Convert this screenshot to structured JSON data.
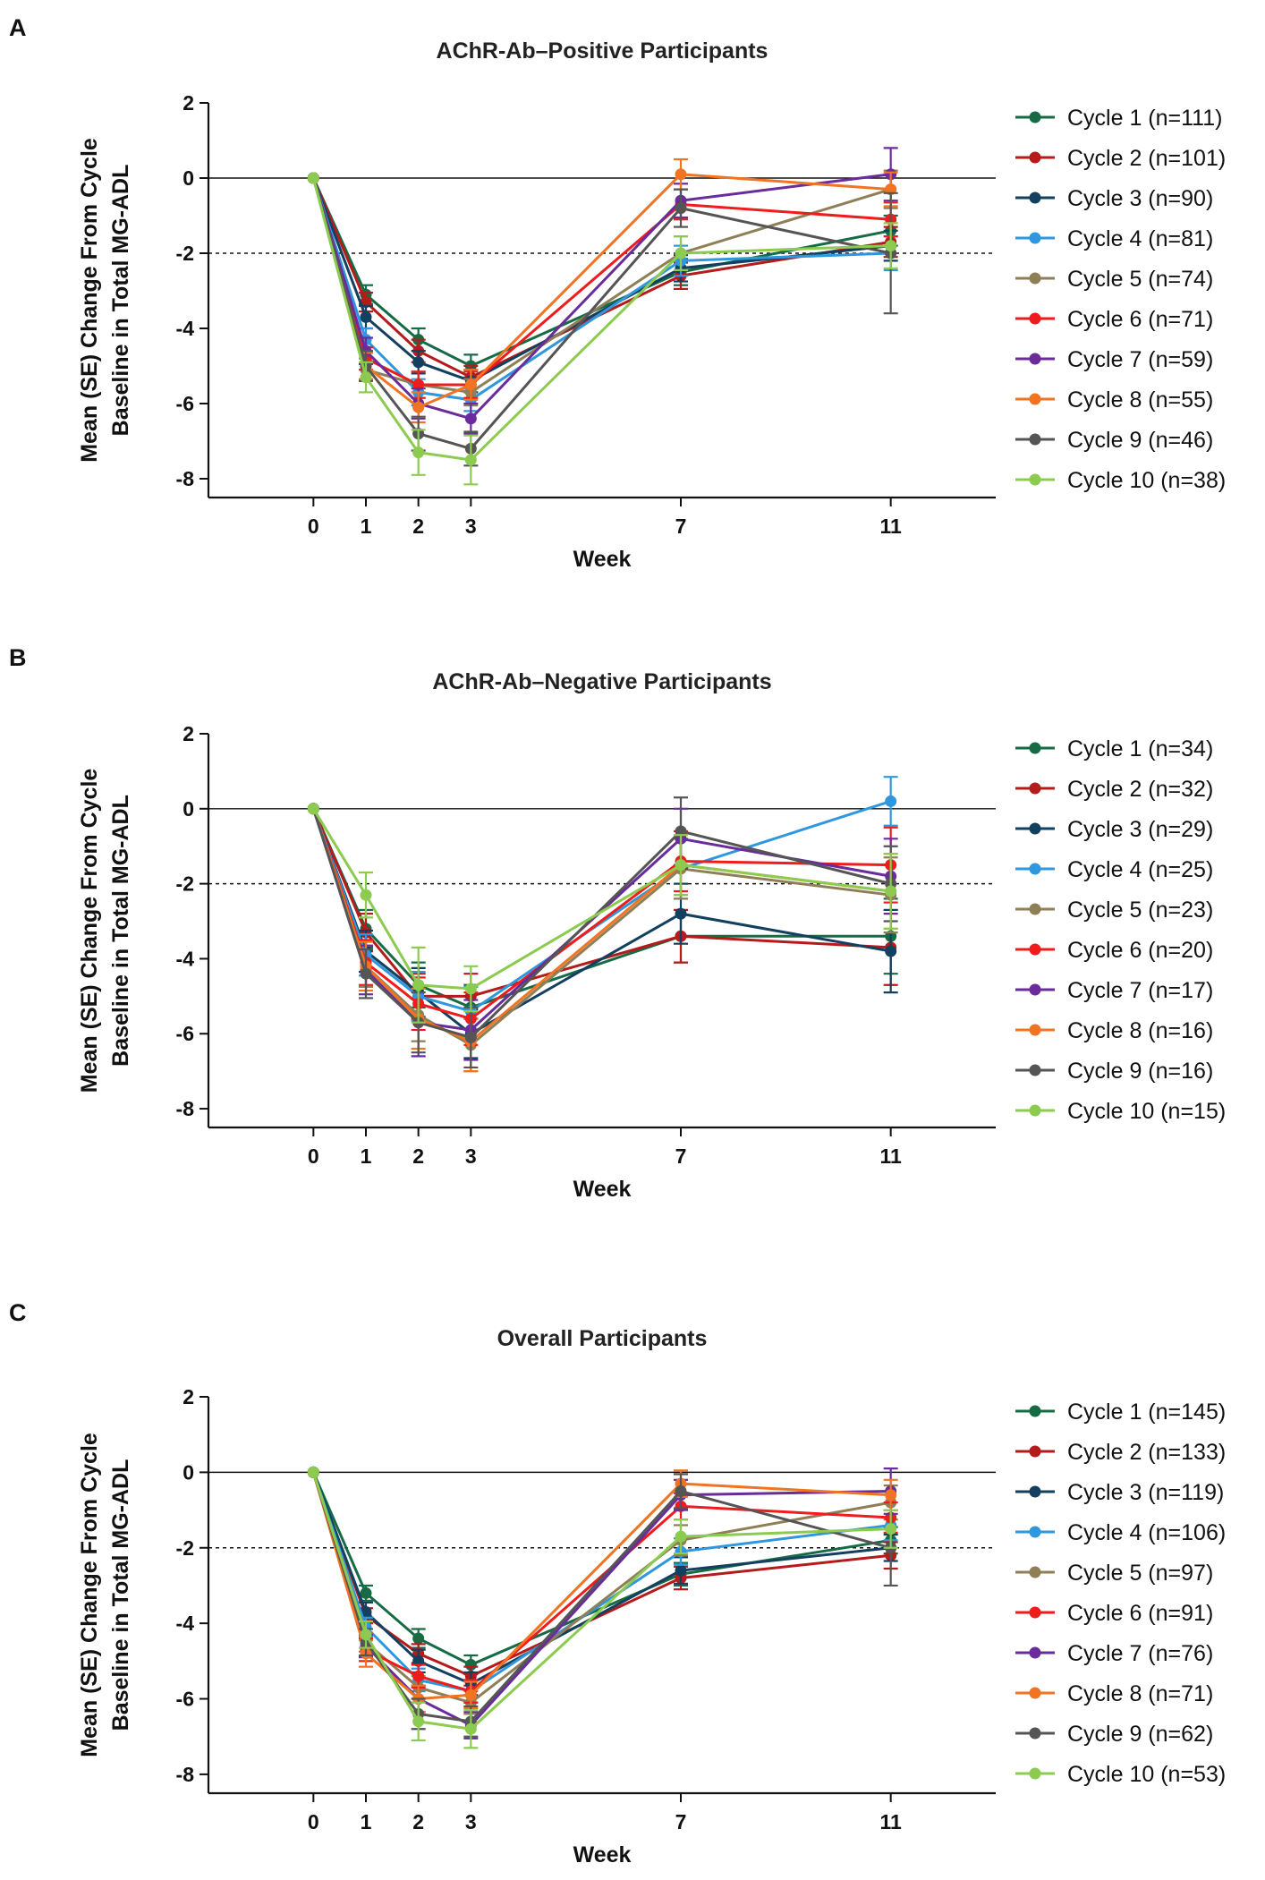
{
  "colors": {
    "Cycle 1": "#166B45",
    "Cycle 2": "#B51B1B",
    "Cycle 3": "#12405E",
    "Cycle 4": "#2F97DE",
    "Cycle 5": "#8E7F57",
    "Cycle 6": "#EE1C1C",
    "Cycle 7": "#6A2C9A",
    "Cycle 8": "#F07421",
    "Cycle 9": "#555555",
    "Cycle 10": "#8CCB4F"
  },
  "chart_data": [
    {
      "panel": "A",
      "type": "line",
      "title": "AChR-Ab–Positive Participants",
      "xlabel": "Week",
      "ylabel": [
        "Mean (SE) Change From Cycle",
        "Baseline in Total MG-ADL"
      ],
      "x": [
        0,
        1,
        2,
        3,
        7,
        11
      ],
      "xticks": [
        "0",
        "1",
        "2",
        "3",
        "7",
        "11"
      ],
      "yticks": [
        "2",
        "0",
        "-2",
        "-4",
        "-6",
        "-8"
      ],
      "xlim": [
        -2,
        13
      ],
      "ylim": [
        -8.5,
        2
      ],
      "reference_lines": [
        0,
        -2
      ],
      "legend_position": "right",
      "series": [
        {
          "name": "Cycle 1",
          "legend": "Cycle 1 (n=111)",
          "values": [
            0,
            -3.1,
            -4.3,
            -5.0,
            -2.5,
            -1.4
          ],
          "se": [
            0,
            0.25,
            0.3,
            0.3,
            0.35,
            0.4
          ]
        },
        {
          "name": "Cycle 2",
          "legend": "Cycle 2 (n=101)",
          "values": [
            0,
            -3.3,
            -4.6,
            -5.3,
            -2.6,
            -1.7
          ],
          "se": [
            0,
            0.25,
            0.3,
            0.3,
            0.35,
            0.4
          ]
        },
        {
          "name": "Cycle 3",
          "legend": "Cycle 3 (n=90)",
          "values": [
            0,
            -3.7,
            -4.9,
            -5.4,
            -2.4,
            -1.8
          ],
          "se": [
            0,
            0.3,
            0.3,
            0.3,
            0.35,
            0.4
          ]
        },
        {
          "name": "Cycle 4",
          "legend": "Cycle 4 (n=81)",
          "values": [
            0,
            -4.3,
            -5.7,
            -5.9,
            -2.2,
            -2.0
          ],
          "se": [
            0,
            0.3,
            0.35,
            0.3,
            0.4,
            0.45
          ]
        },
        {
          "name": "Cycle 5",
          "legend": "Cycle 5 (n=74)",
          "values": [
            0,
            -5.1,
            -5.5,
            -5.7,
            -2.0,
            -0.3
          ],
          "se": [
            0,
            0.3,
            0.35,
            0.35,
            0.45,
            0.5
          ]
        },
        {
          "name": "Cycle 6",
          "legend": "Cycle 6 (n=71)",
          "values": [
            0,
            -4.8,
            -5.5,
            -5.5,
            -0.7,
            -1.1
          ],
          "se": [
            0,
            0.3,
            0.35,
            0.35,
            0.4,
            0.45
          ]
        },
        {
          "name": "Cycle 7",
          "legend": "Cycle 7 (n=59)",
          "values": [
            0,
            -4.6,
            -6.0,
            -6.4,
            -0.6,
            0.1
          ],
          "se": [
            0,
            0.35,
            0.4,
            0.4,
            0.45,
            0.7
          ]
        },
        {
          "name": "Cycle 8",
          "legend": "Cycle 8 (n=55)",
          "values": [
            0,
            -5.0,
            -6.1,
            -5.5,
            0.1,
            -0.3
          ],
          "se": [
            0,
            0.35,
            0.4,
            0.4,
            0.4,
            0.45
          ]
        },
        {
          "name": "Cycle 9",
          "legend": "Cycle 9 (n=46)",
          "values": [
            0,
            -5.0,
            -6.8,
            -7.2,
            -0.8,
            -2.0
          ],
          "se": [
            0,
            0.4,
            0.45,
            0.45,
            0.5,
            1.6
          ]
        },
        {
          "name": "Cycle 10",
          "legend": "Cycle 10 (n=38)",
          "values": [
            0,
            -5.3,
            -7.3,
            -7.5,
            -2.0,
            -1.8
          ],
          "se": [
            0,
            0.4,
            0.6,
            0.65,
            0.45,
            0.6
          ]
        }
      ]
    },
    {
      "panel": "B",
      "type": "line",
      "title": "AChR-Ab–Negative Participants",
      "xlabel": "Week",
      "ylabel": [
        "Mean (SE) Change From Cycle",
        "Baseline in Total MG-ADL"
      ],
      "x": [
        0,
        1,
        2,
        3,
        7,
        11
      ],
      "xticks": [
        "0",
        "1",
        "2",
        "3",
        "7",
        "11"
      ],
      "yticks": [
        "2",
        "0",
        "-2",
        "-4",
        "-6",
        "-8"
      ],
      "xlim": [
        -2,
        13
      ],
      "ylim": [
        -8.5,
        2
      ],
      "reference_lines": [
        0,
        -2
      ],
      "legend_position": "right",
      "series": [
        {
          "name": "Cycle 1",
          "legend": "Cycle 1 (n=34)",
          "values": [
            0,
            -3.2,
            -4.7,
            -5.3,
            -3.4,
            -3.4
          ],
          "se": [
            0,
            0.5,
            0.6,
            0.6,
            0.7,
            1.0
          ]
        },
        {
          "name": "Cycle 2",
          "legend": "Cycle 2 (n=32)",
          "values": [
            0,
            -3.3,
            -5.0,
            -5.0,
            -3.4,
            -3.7
          ],
          "se": [
            0,
            0.5,
            0.6,
            0.6,
            0.7,
            1.0
          ]
        },
        {
          "name": "Cycle 3",
          "legend": "Cycle 3 (n=29)",
          "values": [
            0,
            -3.8,
            -4.9,
            -6.0,
            -2.8,
            -3.8
          ],
          "se": [
            0,
            0.55,
            0.65,
            0.65,
            0.8,
            1.1
          ]
        },
        {
          "name": "Cycle 4",
          "legend": "Cycle 4 (n=25)",
          "values": [
            0,
            -3.9,
            -5.0,
            -5.4,
            -1.6,
            0.2
          ],
          "se": [
            0,
            0.55,
            0.65,
            0.65,
            0.8,
            0.65
          ]
        },
        {
          "name": "Cycle 5",
          "legend": "Cycle 5 (n=23)",
          "values": [
            0,
            -4.2,
            -5.5,
            -6.3,
            -1.6,
            -2.3
          ],
          "se": [
            0,
            0.55,
            0.7,
            0.7,
            0.8,
            1.0
          ]
        },
        {
          "name": "Cycle 6",
          "legend": "Cycle 6 (n=20)",
          "values": [
            0,
            -4.1,
            -5.2,
            -5.6,
            -1.4,
            -1.5
          ],
          "se": [
            0,
            0.6,
            0.7,
            0.7,
            0.8,
            1.0
          ]
        },
        {
          "name": "Cycle 7",
          "legend": "Cycle 7 (n=17)",
          "values": [
            0,
            -4.3,
            -5.7,
            -5.9,
            -0.8,
            -1.8
          ],
          "se": [
            0,
            0.65,
            0.9,
            0.8,
            0.8,
            1.0
          ]
        },
        {
          "name": "Cycle 8",
          "legend": "Cycle 8 (n=16)",
          "values": [
            0,
            -4.2,
            -5.6,
            -6.2,
            -1.5,
            -2.2
          ],
          "se": [
            0,
            0.65,
            0.8,
            0.8,
            0.8,
            1.0
          ]
        },
        {
          "name": "Cycle 9",
          "legend": "Cycle 9 (n=16)",
          "values": [
            0,
            -4.4,
            -5.7,
            -6.1,
            -0.6,
            -2.0
          ],
          "se": [
            0,
            0.65,
            0.8,
            0.8,
            0.9,
            1.0
          ]
        },
        {
          "name": "Cycle 10",
          "legend": "Cycle 10 (n=15)",
          "values": [
            0,
            -2.3,
            -4.7,
            -4.8,
            -1.5,
            -2.2
          ],
          "se": [
            0,
            0.6,
            1.0,
            0.6,
            0.8,
            1.0
          ]
        }
      ]
    },
    {
      "panel": "C",
      "type": "line",
      "title": "Overall Participants",
      "xlabel": "Week",
      "ylabel": [
        "Mean (SE) Change From Cycle",
        "Baseline in Total MG-ADL"
      ],
      "x": [
        0,
        1,
        2,
        3,
        7,
        11
      ],
      "xticks": [
        "0",
        "1",
        "2",
        "3",
        "7",
        "11"
      ],
      "yticks": [
        "2",
        "0",
        "-2",
        "-4",
        "-6",
        "-8"
      ],
      "xlim": [
        -2,
        13
      ],
      "ylim": [
        -8.5,
        2
      ],
      "reference_lines": [
        0,
        -2
      ],
      "legend_position": "right",
      "series": [
        {
          "name": "Cycle 1",
          "legend": "Cycle 1 (n=145)",
          "values": [
            0,
            -3.2,
            -4.4,
            -5.1,
            -2.7,
            -1.8
          ],
          "se": [
            0,
            0.2,
            0.25,
            0.25,
            0.3,
            0.35
          ]
        },
        {
          "name": "Cycle 2",
          "legend": "Cycle 2 (n=133)",
          "values": [
            0,
            -3.8,
            -4.8,
            -5.4,
            -2.8,
            -2.2
          ],
          "se": [
            0,
            0.2,
            0.25,
            0.25,
            0.3,
            0.35
          ]
        },
        {
          "name": "Cycle 3",
          "legend": "Cycle 3 (n=119)",
          "values": [
            0,
            -3.7,
            -5.0,
            -5.6,
            -2.6,
            -2.0
          ],
          "se": [
            0,
            0.25,
            0.3,
            0.3,
            0.35,
            0.35
          ]
        },
        {
          "name": "Cycle 4",
          "legend": "Cycle 4 (n=106)",
          "values": [
            0,
            -4.1,
            -5.5,
            -5.8,
            -2.1,
            -1.4
          ],
          "se": [
            0,
            0.25,
            0.3,
            0.3,
            0.35,
            0.4
          ]
        },
        {
          "name": "Cycle 5",
          "legend": "Cycle 5 (n=97)",
          "values": [
            0,
            -4.5,
            -5.7,
            -6.1,
            -1.8,
            -0.8
          ],
          "se": [
            0,
            0.25,
            0.3,
            0.3,
            0.4,
            0.45
          ]
        },
        {
          "name": "Cycle 6",
          "legend": "Cycle 6 (n=91)",
          "values": [
            0,
            -4.7,
            -5.4,
            -5.8,
            -0.9,
            -1.2
          ],
          "se": [
            0,
            0.3,
            0.3,
            0.3,
            0.35,
            0.4
          ]
        },
        {
          "name": "Cycle 7",
          "legend": "Cycle 7 (n=76)",
          "values": [
            0,
            -4.6,
            -6.0,
            -6.7,
            -0.6,
            -0.5
          ],
          "se": [
            0,
            0.3,
            0.35,
            0.35,
            0.4,
            0.6
          ]
        },
        {
          "name": "Cycle 8",
          "legend": "Cycle 8 (n=71)",
          "values": [
            0,
            -4.8,
            -6.0,
            -5.9,
            -0.3,
            -0.6
          ],
          "se": [
            0,
            0.35,
            0.35,
            0.35,
            0.35,
            0.4
          ]
        },
        {
          "name": "Cycle 9",
          "legend": "Cycle 9 (n=62)",
          "values": [
            0,
            -4.5,
            -6.4,
            -6.6,
            -0.5,
            -2.0
          ],
          "se": [
            0,
            0.35,
            0.4,
            0.4,
            0.45,
            1.0
          ]
        },
        {
          "name": "Cycle 10",
          "legend": "Cycle 10 (n=53)",
          "values": [
            0,
            -4.3,
            -6.6,
            -6.8,
            -1.7,
            -1.5
          ],
          "se": [
            0,
            0.35,
            0.5,
            0.5,
            0.45,
            0.5
          ]
        }
      ]
    }
  ]
}
